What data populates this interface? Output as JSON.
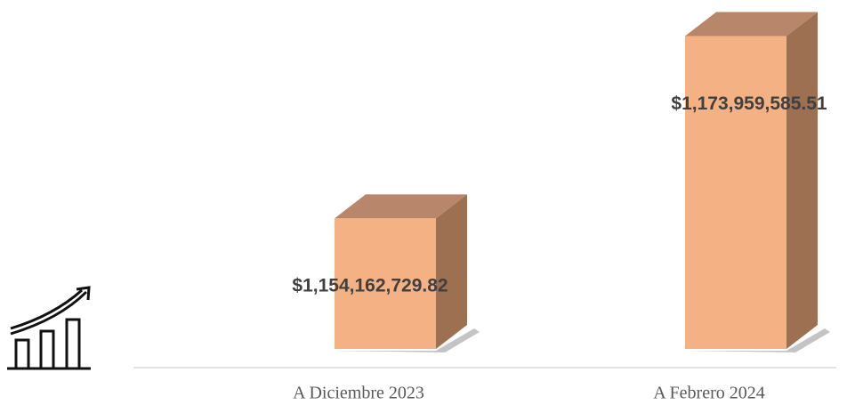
{
  "chart_data": {
    "type": "bar3d",
    "categories": [
      "A Diciembre 2023",
      "A Febrero 2024"
    ],
    "values": [
      1154162729.82,
      1173959585.51
    ],
    "value_labels": [
      "$1,154,162,729.82",
      "$1,173,959,585.51"
    ],
    "color": "#f4b183",
    "ylim": [
      1140000000,
      1177000000
    ]
  }
}
